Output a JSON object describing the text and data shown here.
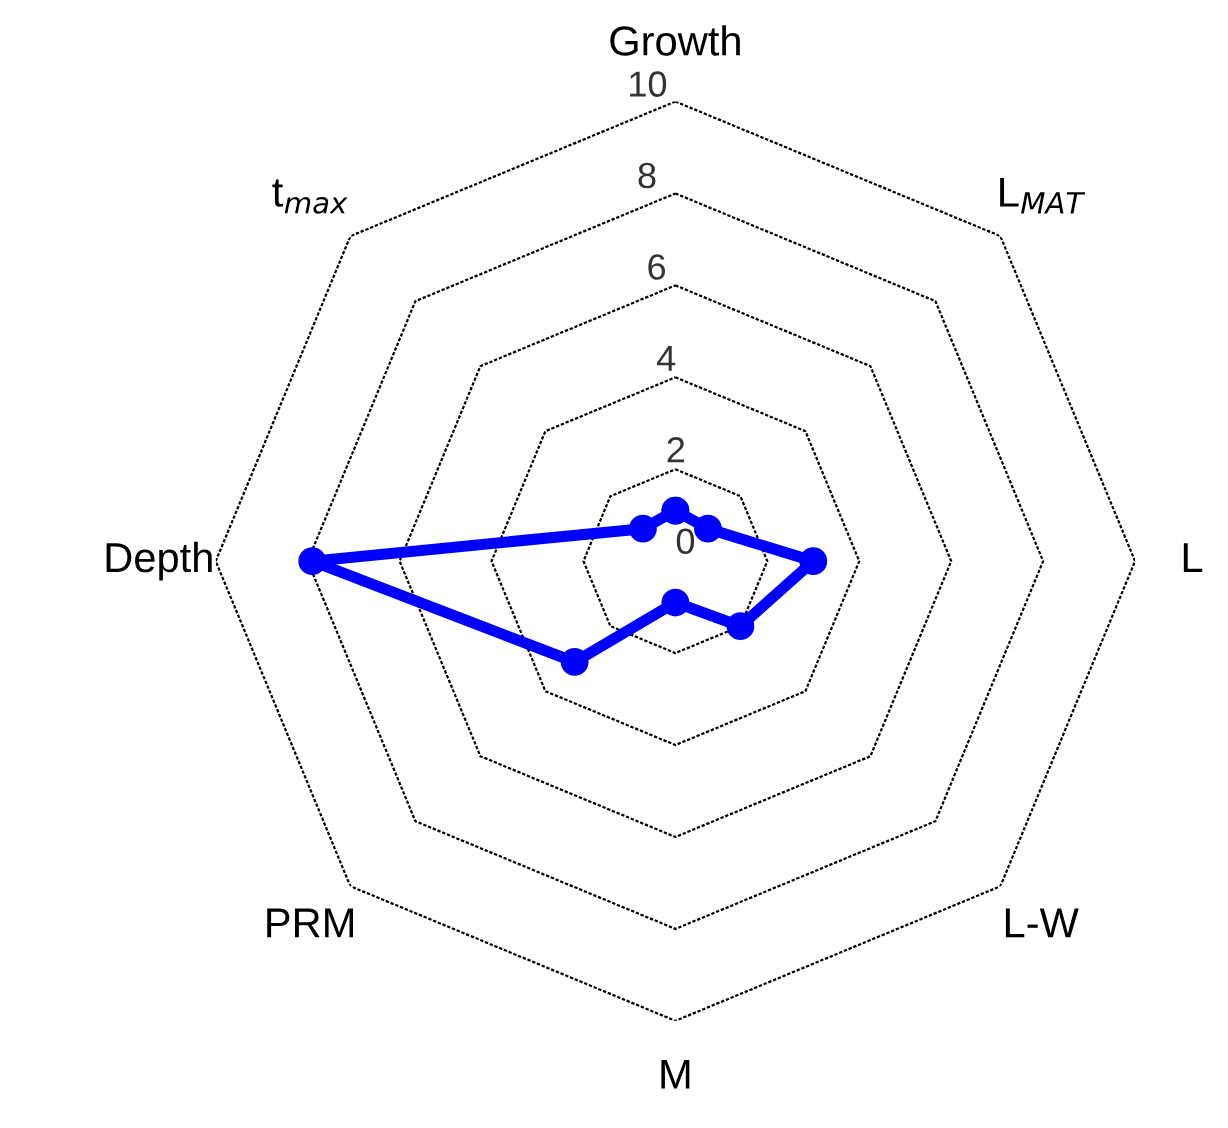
{
  "chart_data": {
    "type": "radar",
    "categories": [
      "Growth",
      "L$_{MAT}$",
      "L",
      "L-W",
      "M",
      "PRM",
      "Depth",
      "t$_{max}$"
    ],
    "series": [
      {
        "color": "#0000ff",
        "values": [
          1.1,
          1.0,
          3.0,
          2.0,
          0.9,
          3.1,
          7.9,
          1.0
        ]
      }
    ],
    "ylim": [
      0,
      10
    ],
    "yticks": [
      0,
      2,
      4,
      6,
      8,
      10
    ],
    "grid": true,
    "marker": "circle",
    "line_style": "solid"
  }
}
